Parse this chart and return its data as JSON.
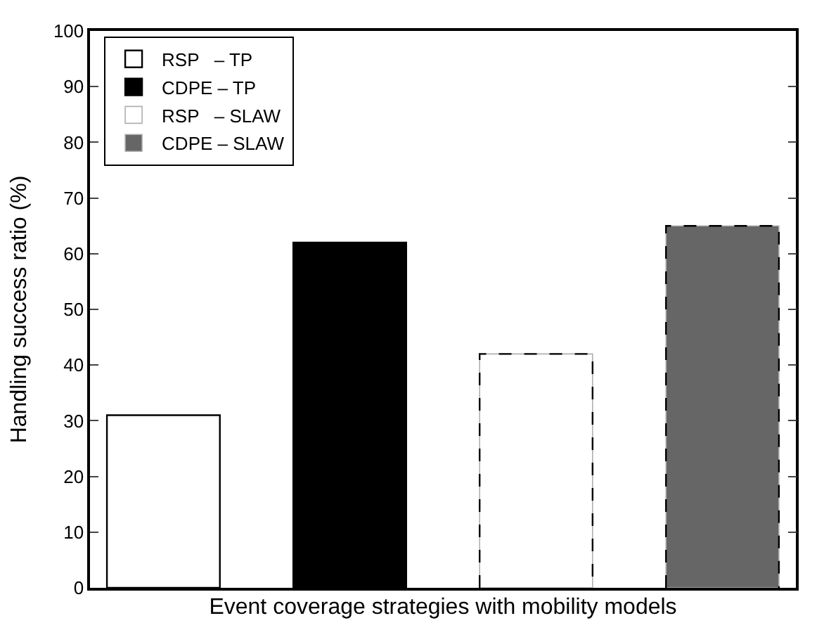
{
  "chart_data": {
    "type": "bar",
    "xlabel": "Event coverage strategies with mobility models",
    "ylabel": "Handling success ratio (%)",
    "categories": [
      null
    ],
    "series": [
      {
        "name": "RSP   – TP",
        "color": "#ffffff",
        "values": [
          31
        ],
        "line_style": "solid"
      },
      {
        "name": "CDPE – TP",
        "color": "#000000",
        "values": [
          62
        ],
        "line_style": "solid"
      },
      {
        "name": "RSP   – SLAW",
        "color": "#ffffff",
        "values": [
          42
        ],
        "line_style": "dashed"
      },
      {
        "name": "CDPE – SLAW",
        "color": "#666666",
        "values": [
          65
        ],
        "line_style": "dashed"
      }
    ],
    "ylim": [
      0,
      100
    ],
    "yticks": [
      0,
      10,
      20,
      30,
      40,
      50,
      60,
      70,
      80,
      90,
      100
    ],
    "legend": "top left"
  }
}
